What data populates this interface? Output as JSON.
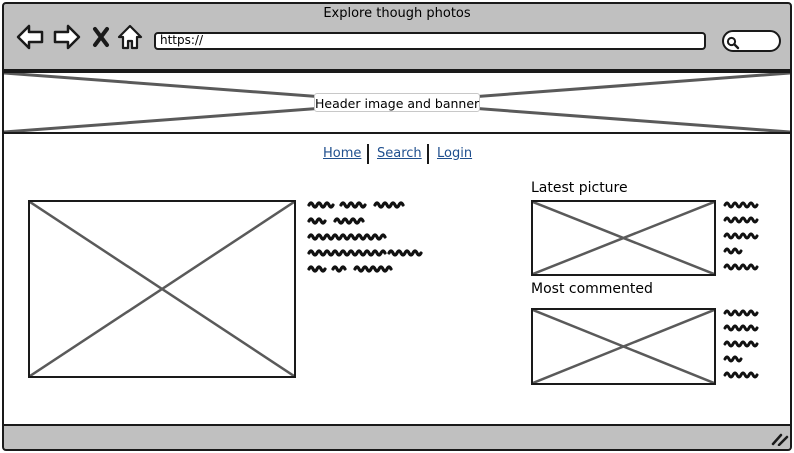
{
  "window": {
    "title": "Explore though photos"
  },
  "toolbar": {
    "back_icon": "arrow-left-icon",
    "forward_icon": "arrow-right-icon",
    "stop_icon": "close-icon",
    "home_icon": "home-icon",
    "address_value": "https://",
    "search_icon": "search-icon"
  },
  "header": {
    "banner_label": "Header image and banner"
  },
  "nav": {
    "items": [
      {
        "label": "Home"
      },
      {
        "label": "Search"
      },
      {
        "label": "Login"
      }
    ]
  },
  "sidebar": {
    "latest_heading": "Latest picture",
    "most_commented_heading": "Most commented"
  },
  "colors": {
    "chrome_gray": "#c0c0c0",
    "border": "#1a1a1a",
    "placeholder_line": "#5a5a5a",
    "link": "#1f4f8e"
  }
}
